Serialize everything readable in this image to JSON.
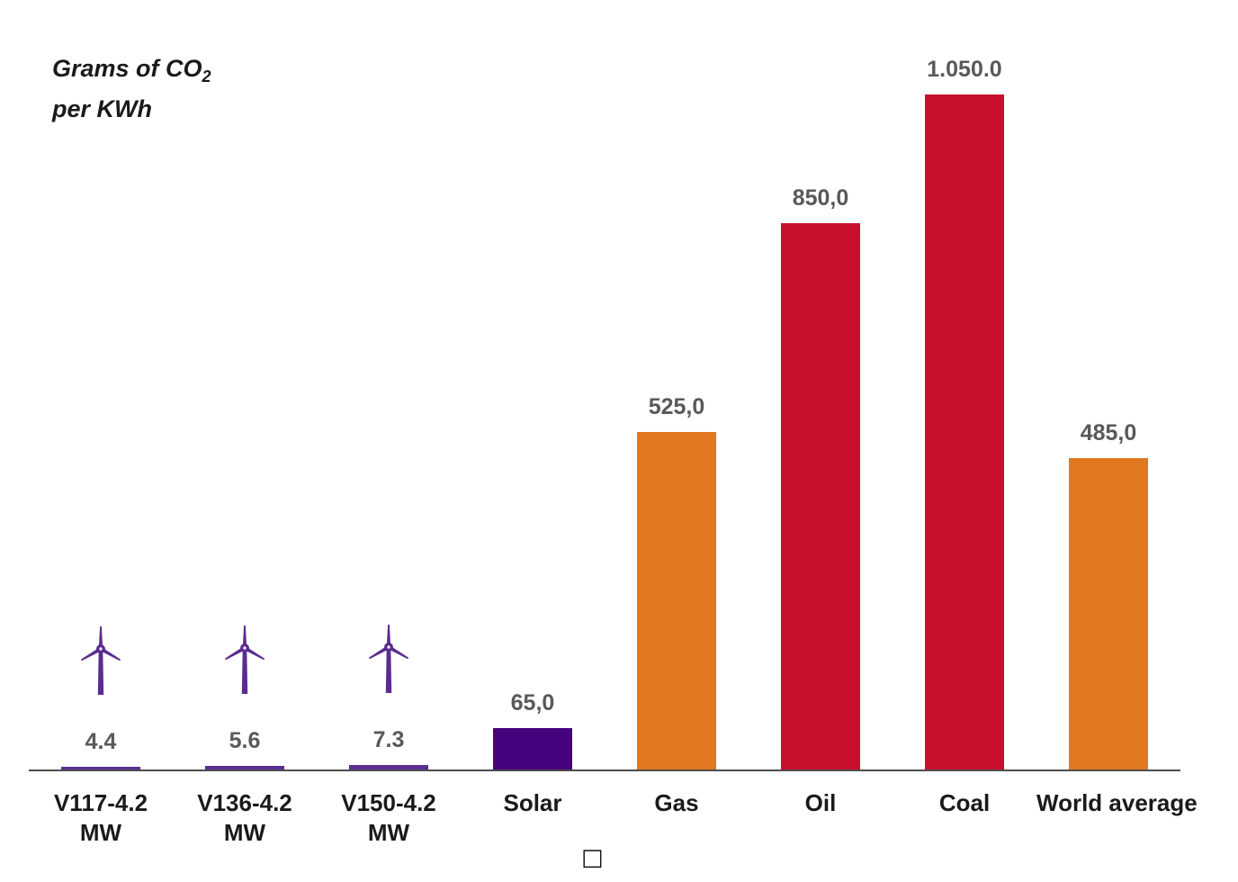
{
  "title": {
    "line1_main": "Grams of CO",
    "line1_sub": "2",
    "line2": "per KWh"
  },
  "colors": {
    "wind_purple": "#5B2C8F",
    "solar_purple": "#45037D",
    "gas_orange": "#E1771F",
    "oil_coal_red": "#C8102E",
    "axis_line": "#4D4D4D",
    "value_label": "#595959",
    "category_label": "#1A1A1A"
  },
  "chart_data": {
    "type": "bar",
    "title": "Grams of CO2 per KWh",
    "xlabel": "",
    "ylabel": "Grams of CO2 per KWh",
    "ylim": [
      0,
      1100
    ],
    "grid": false,
    "legend_position": "none",
    "categories": [
      "V117-4.2 MW",
      "V136-4.2 MW",
      "V150-4.2 MW",
      "Solar",
      "Gas",
      "Oil",
      "Coal",
      "World average"
    ],
    "values": [
      4.4,
      5.6,
      7.3,
      65.0,
      525.0,
      850.0,
      1050.0,
      485.0
    ],
    "value_labels": [
      "4.4",
      "5.6",
      "7.3",
      "65,0",
      "525,0",
      "850,0",
      "1.050.0",
      "485,0"
    ],
    "bars": [
      {
        "cat_line1": "V117-4.2",
        "cat_line2": "MW",
        "value": 4.4,
        "label": "4.4",
        "color": "#5B2C8F",
        "icon": "wind-turbine"
      },
      {
        "cat_line1": "V136-4.2",
        "cat_line2": "MW",
        "value": 5.6,
        "label": "5.6",
        "color": "#5B2C8F",
        "icon": "wind-turbine"
      },
      {
        "cat_line1": "V150-4.2",
        "cat_line2": "MW",
        "value": 7.3,
        "label": "7.3",
        "color": "#5B2C8F",
        "icon": "wind-turbine"
      },
      {
        "cat_line1": "Solar",
        "cat_line2": "",
        "value": 65.0,
        "label": "65,0",
        "color": "#45037D",
        "icon": ""
      },
      {
        "cat_line1": "Gas",
        "cat_line2": "",
        "value": 525.0,
        "label": "525,0",
        "color": "#E1771F",
        "icon": ""
      },
      {
        "cat_line1": "Oil",
        "cat_line2": "",
        "value": 850.0,
        "label": "850,0",
        "color": "#C8102E",
        "icon": ""
      },
      {
        "cat_line1": "Coal",
        "cat_line2": "",
        "value": 1050.0,
        "label": "1.050.0",
        "color": "#C8102E",
        "icon": ""
      },
      {
        "cat_line1": "World average",
        "cat_line2": "",
        "value": 485.0,
        "label": "485,0",
        "color": "#E1771F",
        "icon": ""
      }
    ]
  },
  "footer": {
    "glyph": "□"
  }
}
